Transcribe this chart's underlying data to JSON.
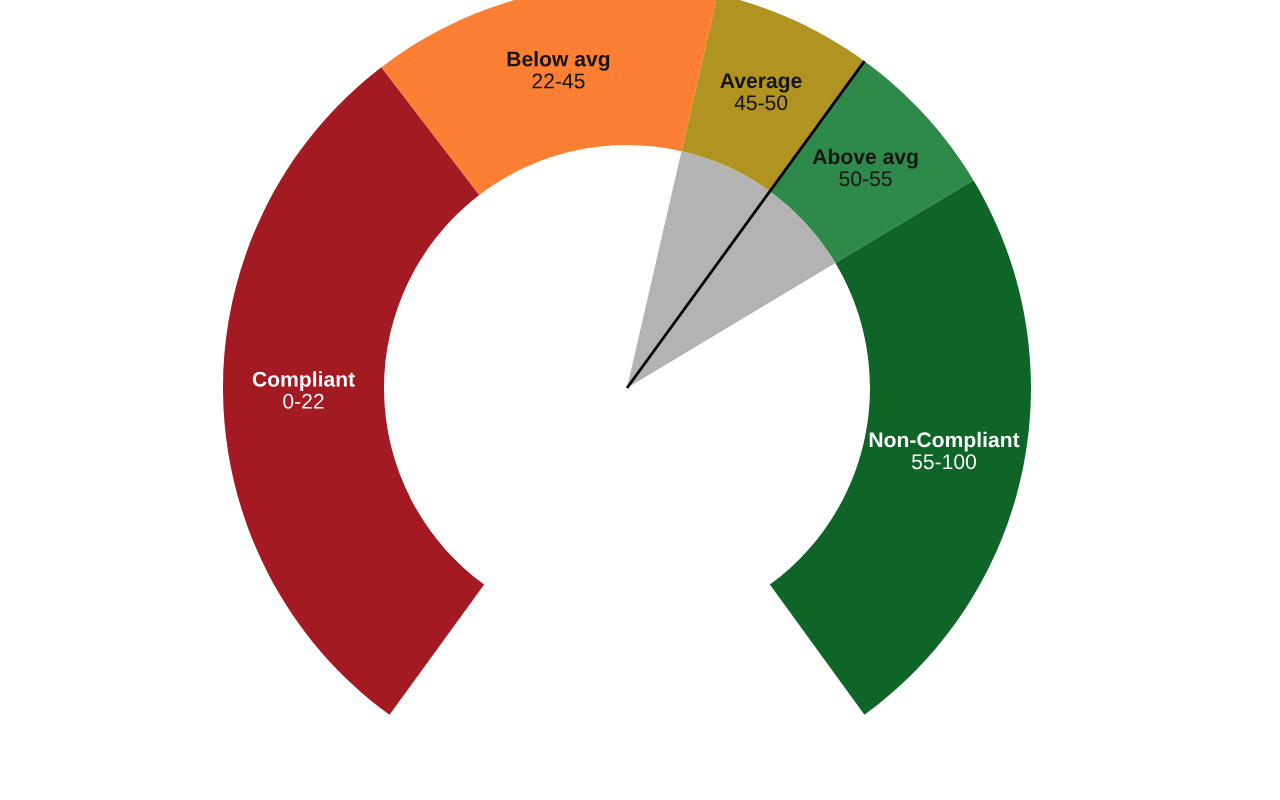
{
  "chart_data": {
    "type": "donut",
    "categories": [
      "Compliant",
      "Below avg",
      "Average",
      "Above avg",
      "Non-Compliant"
    ],
    "values": [
      37,
      17.5,
      8,
      8,
      29.5
    ],
    "colors": [
      "#a31a22",
      "#fd7f33",
      "#b09320",
      "#2e8a4a",
      "#0f6428"
    ],
    "value_labels": [
      "0-22",
      "22-45",
      "45-50",
      "50-55",
      "55-100"
    ],
    "needle": "Above avg"
  }
}
